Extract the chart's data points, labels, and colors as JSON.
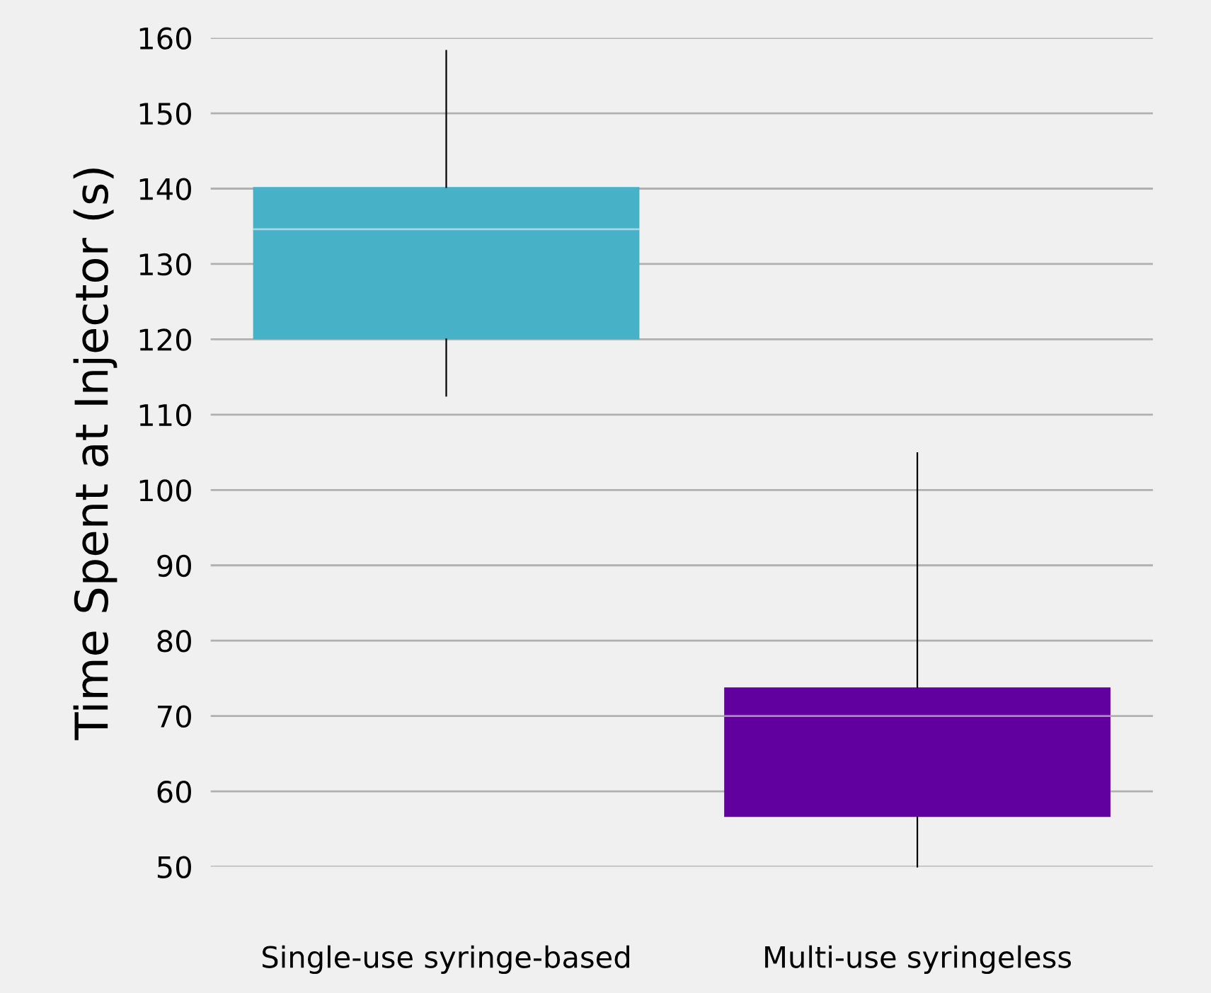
{
  "chart_data": {
    "type": "box",
    "ylabel": "Time Spent at Injector (s)",
    "categories": [
      "Single-use syringe-based",
      "Multi-use syringeless"
    ],
    "boxes": [
      {
        "low": 112.5,
        "q1": 120,
        "median": 134.6,
        "q3": 140.2,
        "high": 158.3
      },
      {
        "low": 50,
        "q1": 56.6,
        "median": 70,
        "q3": 73.8,
        "high": 104.9
      }
    ],
    "colors": [
      "#46b1c7",
      "#62009f"
    ],
    "ylim": [
      50,
      160
    ],
    "yticks": [
      50,
      60,
      70,
      80,
      90,
      100,
      110,
      120,
      130,
      140,
      150,
      160
    ],
    "grid": "y"
  }
}
